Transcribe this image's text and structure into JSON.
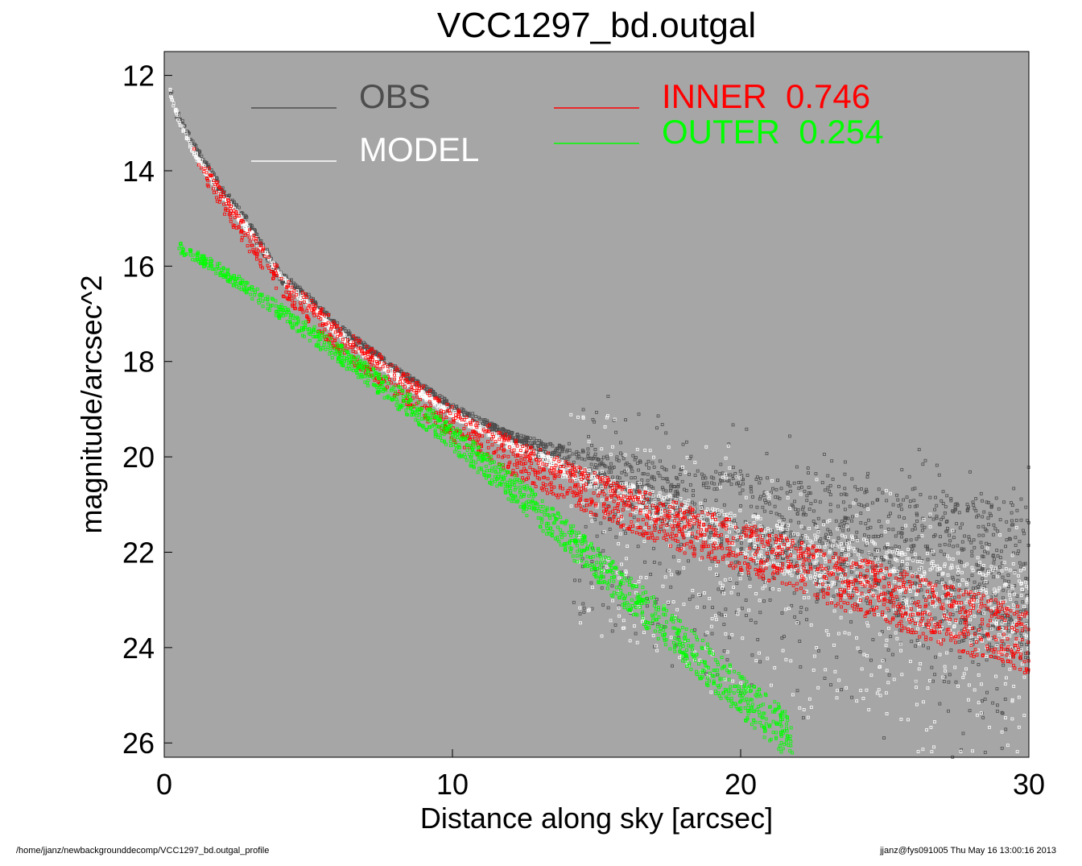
{
  "chart_data": {
    "type": "scatter",
    "title": "VCC1297_bd.outgal",
    "xlabel": "Distance along sky [arcsec]",
    "ylabel": "magnitude/arcsec^2",
    "xlim": [
      0,
      30
    ],
    "ylim": [
      26.3,
      11.5
    ],
    "y_inverted": true,
    "x_ticks": [
      0,
      10,
      20,
      30
    ],
    "y_ticks": [
      12,
      14,
      16,
      18,
      20,
      22,
      24,
      26
    ],
    "background": "#a6a6a6",
    "grid": false,
    "legend": [
      {
        "label": "OBS",
        "color": "#4d4d4d"
      },
      {
        "label": "MODEL",
        "color": "#ffffff"
      },
      {
        "label": "INNER",
        "value": "0.746",
        "color": "#ff0000"
      },
      {
        "label": "OUTER",
        "value": "0.254",
        "color": "#00ff00"
      }
    ],
    "series": [
      {
        "name": "OBS",
        "color": "#4d4d4d",
        "marker": "open-square",
        "x": [
          0.2,
          0.5,
          1,
          2,
          3,
          4,
          5,
          6,
          8,
          10,
          12,
          14,
          16,
          18,
          20,
          22,
          24,
          26,
          28,
          30
        ],
        "y": [
          12.35,
          12.9,
          13.5,
          14.4,
          15.2,
          16.2,
          16.7,
          17.3,
          18.2,
          19.0,
          19.6,
          20.1,
          20.5,
          20.9,
          21.2,
          21.5,
          21.8,
          22.1,
          22.4,
          22.6
        ]
      },
      {
        "name": "MODEL",
        "color": "#ffffff",
        "marker": "open-square",
        "x": [
          0.2,
          0.5,
          1,
          2,
          3,
          4,
          5,
          6,
          8,
          10,
          12,
          14,
          16,
          18,
          20,
          22,
          24,
          26,
          28,
          30
        ],
        "y": [
          12.35,
          12.9,
          13.6,
          14.5,
          15.3,
          16.2,
          16.8,
          17.4,
          18.3,
          19.1,
          19.75,
          20.3,
          20.8,
          21.25,
          21.65,
          22.0,
          22.35,
          22.7,
          23.05,
          23.4
        ]
      },
      {
        "name": "INNER",
        "color": "#ff0000",
        "marker": "open-square",
        "x": [
          1,
          2,
          3,
          4,
          5,
          6,
          8,
          10,
          12,
          14,
          16,
          18,
          20,
          22,
          24,
          26,
          28,
          30
        ],
        "y": [
          13.6,
          14.6,
          15.5,
          16.3,
          16.9,
          17.5,
          18.4,
          19.3,
          19.95,
          20.55,
          21.05,
          21.5,
          21.9,
          22.3,
          22.7,
          23.1,
          23.5,
          23.85
        ]
      },
      {
        "name": "OUTER",
        "color": "#00ff00",
        "marker": "open-square",
        "x": [
          0.5,
          2,
          4,
          6,
          8,
          10,
          12,
          14,
          16,
          18,
          20,
          21.8
        ],
        "y": [
          15.6,
          16.1,
          16.95,
          17.8,
          18.7,
          19.6,
          20.6,
          21.7,
          22.8,
          23.9,
          25.0,
          25.9
        ]
      }
    ]
  },
  "footer": {
    "left": "/home/jjanz/newbackgrounddecomp/VCC1297_bd.outgal_profile",
    "right": "jjanz@fys091005  Thu May 16 13:00:16 2013"
  }
}
